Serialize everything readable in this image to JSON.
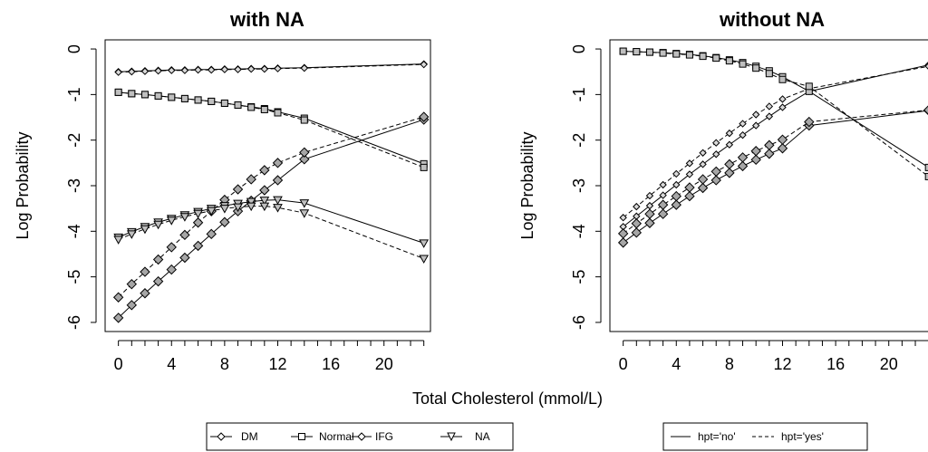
{
  "chart_data": [
    {
      "type": "line",
      "title": "with NA",
      "xlabel": "",
      "ylabel": "Log Probability",
      "xlim": [
        -1,
        23.5
      ],
      "ylim": [
        -6.2,
        0.2
      ],
      "xticks": [
        0,
        4,
        8,
        12,
        16,
        20
      ],
      "yticks": [
        0,
        -1,
        -2,
        -3,
        -4,
        -5,
        -6
      ],
      "x": [
        0,
        1,
        2,
        3,
        4,
        5,
        6,
        7,
        8,
        9,
        10,
        11,
        12,
        14,
        23
      ],
      "series": [
        {
          "name": "DM",
          "hpt": "no",
          "marker": "diamond-open",
          "values": [
            -0.5,
            -0.49,
            -0.48,
            -0.47,
            -0.46,
            -0.46,
            -0.45,
            -0.45,
            -0.44,
            -0.44,
            -0.43,
            -0.43,
            -0.42,
            -0.41,
            -0.33
          ]
        },
        {
          "name": "DM",
          "hpt": "yes",
          "marker": "diamond-open",
          "values": [
            -0.51,
            -0.5,
            -0.49,
            -0.48,
            -0.47,
            -0.47,
            -0.46,
            -0.46,
            -0.45,
            -0.45,
            -0.44,
            -0.44,
            -0.43,
            -0.42,
            -0.34
          ]
        },
        {
          "name": "Normal",
          "hpt": "no",
          "marker": "square",
          "values": [
            -0.95,
            -0.98,
            -1.0,
            -1.03,
            -1.06,
            -1.09,
            -1.12,
            -1.15,
            -1.19,
            -1.23,
            -1.27,
            -1.31,
            -1.38,
            -1.52,
            -2.52
          ]
        },
        {
          "name": "Normal",
          "hpt": "yes",
          "marker": "square",
          "values": [
            -0.95,
            -0.98,
            -1.0,
            -1.03,
            -1.06,
            -1.09,
            -1.12,
            -1.15,
            -1.19,
            -1.23,
            -1.28,
            -1.33,
            -1.4,
            -1.56,
            -2.6
          ]
        },
        {
          "name": "IFG",
          "hpt": "no",
          "marker": "diamond-filled",
          "values": [
            -5.9,
            -5.62,
            -5.36,
            -5.1,
            -4.84,
            -4.58,
            -4.32,
            -4.06,
            -3.8,
            -3.56,
            -3.33,
            -3.1,
            -2.88,
            -2.42,
            -1.55
          ]
        },
        {
          "name": "IFG",
          "hpt": "yes",
          "marker": "diamond-filled",
          "values": [
            -5.45,
            -5.16,
            -4.89,
            -4.62,
            -4.35,
            -4.08,
            -3.81,
            -3.56,
            -3.31,
            -3.08,
            -2.86,
            -2.66,
            -2.5,
            -2.27,
            -1.49
          ]
        },
        {
          "name": "NA",
          "hpt": "no",
          "marker": "triangle-down",
          "values": [
            -4.13,
            -4.01,
            -3.9,
            -3.8,
            -3.72,
            -3.64,
            -3.57,
            -3.5,
            -3.44,
            -3.39,
            -3.35,
            -3.32,
            -3.31,
            -3.38,
            -4.26
          ]
        },
        {
          "name": "NA",
          "hpt": "yes",
          "marker": "triangle-down",
          "values": [
            -4.18,
            -4.06,
            -3.95,
            -3.85,
            -3.76,
            -3.68,
            -3.61,
            -3.55,
            -3.5,
            -3.47,
            -3.45,
            -3.45,
            -3.48,
            -3.6,
            -4.6
          ]
        }
      ]
    },
    {
      "type": "line",
      "title": "without NA",
      "xlabel": "",
      "ylabel": "Log Probability",
      "xlim": [
        -1,
        23.5
      ],
      "ylim": [
        -6.2,
        0.2
      ],
      "xticks": [
        0,
        4,
        8,
        12,
        16,
        20
      ],
      "yticks": [
        0,
        -1,
        -2,
        -3,
        -4,
        -5,
        -6
      ],
      "x": [
        0,
        1,
        2,
        3,
        4,
        5,
        6,
        7,
        8,
        9,
        10,
        11,
        12,
        14,
        23
      ],
      "series": [
        {
          "name": "DM",
          "hpt": "no",
          "marker": "diamond-open",
          "values": [
            -3.9,
            -3.67,
            -3.44,
            -3.21,
            -2.98,
            -2.75,
            -2.53,
            -2.31,
            -2.1,
            -1.89,
            -1.68,
            -1.48,
            -1.28,
            -0.93,
            -0.35
          ]
        },
        {
          "name": "DM",
          "hpt": "yes",
          "marker": "diamond-open",
          "values": [
            -3.7,
            -3.46,
            -3.22,
            -2.98,
            -2.74,
            -2.51,
            -2.28,
            -2.06,
            -1.85,
            -1.64,
            -1.44,
            -1.26,
            -1.1,
            -0.87,
            -0.38
          ]
        },
        {
          "name": "Normal",
          "hpt": "no",
          "marker": "square",
          "values": [
            -0.05,
            -0.06,
            -0.07,
            -0.08,
            -0.1,
            -0.12,
            -0.15,
            -0.19,
            -0.24,
            -0.3,
            -0.38,
            -0.48,
            -0.61,
            -0.93,
            -2.6
          ]
        },
        {
          "name": "Normal",
          "hpt": "yes",
          "marker": "square",
          "values": [
            -0.05,
            -0.06,
            -0.07,
            -0.09,
            -0.11,
            -0.13,
            -0.16,
            -0.2,
            -0.26,
            -0.33,
            -0.42,
            -0.54,
            -0.67,
            -0.82,
            -2.8
          ]
        },
        {
          "name": "IFG",
          "hpt": "no",
          "marker": "diamond-filled",
          "values": [
            -4.25,
            -4.03,
            -3.82,
            -3.62,
            -3.42,
            -3.23,
            -3.05,
            -2.88,
            -2.72,
            -2.57,
            -2.43,
            -2.3,
            -2.18,
            -1.68,
            -1.35
          ]
        },
        {
          "name": "IFG",
          "hpt": "yes",
          "marker": "diamond-filled",
          "values": [
            -4.05,
            -3.83,
            -3.62,
            -3.42,
            -3.23,
            -3.04,
            -2.86,
            -2.69,
            -2.53,
            -2.38,
            -2.24,
            -2.11,
            -1.99,
            -1.6,
            -1.34
          ]
        }
      ]
    }
  ],
  "figure": {
    "xlabel": "Total Cholesterol (mmol/L)",
    "legend_left": [
      "DM",
      "Normal",
      "IFG",
      "NA"
    ],
    "legend_right": [
      "hpt='no'",
      "hpt='yes'"
    ]
  }
}
